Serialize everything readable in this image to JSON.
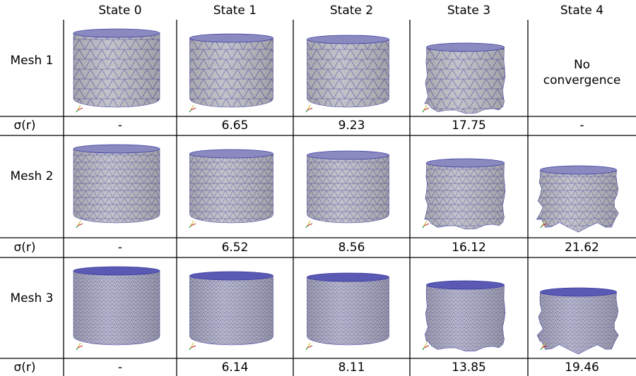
{
  "header": {
    "columns": [
      "State 0",
      "State 1",
      "State 2",
      "State 3",
      "State 4"
    ]
  },
  "rows": [
    {
      "label": "Mesh 1",
      "sigma_label": "σ(r)",
      "sigma": [
        "-",
        "6.65",
        "9.23",
        "17.75",
        "-"
      ],
      "note": "No convergence"
    },
    {
      "label": "Mesh 2",
      "sigma_label": "σ(r)",
      "sigma": [
        "-",
        "6.52",
        "8.56",
        "16.12",
        "21.62"
      ]
    },
    {
      "label": "Mesh 3",
      "sigma_label": "σ(r)",
      "sigma": [
        "-",
        "6.14",
        "8.11",
        "13.85",
        "19.46"
      ]
    }
  ]
}
